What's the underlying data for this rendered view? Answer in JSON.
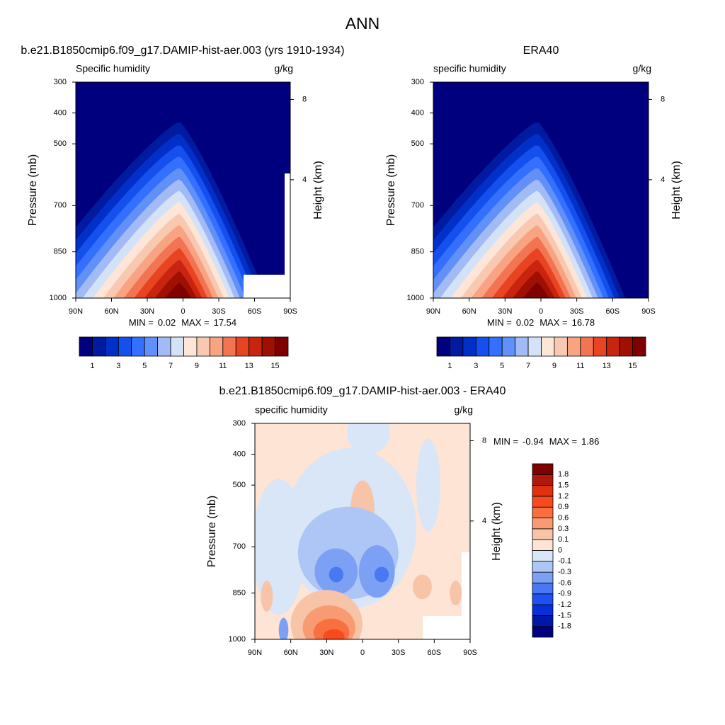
{
  "title": "ANN",
  "chart_data": [
    {
      "type": "contour",
      "title": "b.e21.B1850cmip6.f09_g17.DAMIP-hist-aer.003 (yrs 1910-1934)",
      "left_label": "Specific humidity",
      "units": "g/kg",
      "ylabel": "Pressure (mb)",
      "y2label": "Height (km)",
      "ylim": [
        1000,
        300
      ],
      "yticks": [
        300,
        400,
        500,
        700,
        850,
        1000
      ],
      "y2ticks": [
        8,
        4
      ],
      "xlim": [
        90,
        -90
      ],
      "xticks": [
        {
          "value": 90,
          "label": "90N"
        },
        {
          "value": 60,
          "label": "60N"
        },
        {
          "value": 30,
          "label": "30N"
        },
        0,
        {
          "value": -30,
          "label": "30S"
        },
        {
          "value": -60,
          "label": "60S"
        },
        {
          "value": -90,
          "label": "90S"
        }
      ],
      "min_label": "MIN =",
      "min": 0.02,
      "max_label": "MAX =",
      "max": 17.54,
      "colorbar": {
        "orientation": "horizontal",
        "levels": [
          1,
          2,
          3,
          4,
          5,
          6,
          7,
          8,
          9,
          10,
          11,
          12,
          13,
          14,
          15
        ],
        "colors": [
          "#00007f",
          "#001aa0",
          "#0030c8",
          "#1450ee",
          "#3470ff",
          "#6090f8",
          "#a2baf6",
          "#d4e2f8",
          "#fde6d8",
          "#f8c8b0",
          "#f8a382",
          "#f27452",
          "#e84422",
          "#c82410",
          "#a01000",
          "#7f0000"
        ]
      }
    },
    {
      "type": "contour",
      "title": "ERA40",
      "left_label": "specific humidity",
      "units": "g/kg",
      "ylabel": "Pressure (mb)",
      "y2label": "Height (km)",
      "ylim": [
        1000,
        300
      ],
      "yticks": [
        300,
        400,
        500,
        700,
        850,
        1000
      ],
      "y2ticks": [
        8,
        4
      ],
      "xlim": [
        90,
        -90
      ],
      "xticks": [
        {
          "value": 90,
          "label": "90N"
        },
        {
          "value": 60,
          "label": "60N"
        },
        {
          "value": 30,
          "label": "30N"
        },
        0,
        {
          "value": -30,
          "label": "30S"
        },
        {
          "value": -60,
          "label": "60S"
        },
        {
          "value": -90,
          "label": "90S"
        }
      ],
      "min_label": "MIN =",
      "min": 0.02,
      "max_label": "MAX =",
      "max": 16.78,
      "colorbar": {
        "orientation": "horizontal",
        "levels": [
          1,
          2,
          3,
          4,
          5,
          6,
          7,
          8,
          9,
          10,
          11,
          12,
          13,
          14,
          15
        ],
        "colors": [
          "#00007f",
          "#001aa0",
          "#0030c8",
          "#1450ee",
          "#3470ff",
          "#6090f8",
          "#a2baf6",
          "#d4e2f8",
          "#fde6d8",
          "#f8c8b0",
          "#f8a382",
          "#f27452",
          "#e84422",
          "#c82410",
          "#a01000",
          "#7f0000"
        ]
      }
    },
    {
      "type": "contour-diff",
      "title": "b.e21.B1850cmip6.f09_g17.DAMIP-hist-aer.003 - ERA40",
      "left_label": "specific humidity",
      "units": "g/kg",
      "ylabel": "Pressure (mb)",
      "y2label": "Height (km)",
      "ylim": [
        1000,
        300
      ],
      "yticks": [
        300,
        400,
        500,
        700,
        850,
        1000
      ],
      "y2ticks": [
        8,
        4
      ],
      "xlim": [
        90,
        -90
      ],
      "xticks": [
        {
          "value": 90,
          "label": "90N"
        },
        {
          "value": 60,
          "label": "60N"
        },
        {
          "value": 30,
          "label": "30N"
        },
        0,
        {
          "value": -30,
          "label": "30S"
        },
        {
          "value": -60,
          "label": "60S"
        },
        {
          "value": -90,
          "label": "90S"
        }
      ],
      "min_label": "MIN =",
      "min": -0.94,
      "max_label": "MAX =",
      "max": 1.86,
      "colorbar": {
        "orientation": "vertical",
        "levels": [
          -1.8,
          -1.5,
          -1.2,
          -0.9,
          -0.6,
          -0.3,
          -0.1,
          0,
          0.1,
          0.3,
          0.6,
          0.9,
          1.2,
          1.5,
          1.8
        ],
        "colors": [
          "#00007f",
          "#0018a8",
          "#0830d8",
          "#2050f0",
          "#4878f4",
          "#7ca0f4",
          "#aec6f6",
          "#d8e6f8",
          "#fde4d4",
          "#f8c4a8",
          "#f89a72",
          "#f87040",
          "#f84a1c",
          "#e03010",
          "#b01808",
          "#7f0000"
        ]
      }
    }
  ]
}
